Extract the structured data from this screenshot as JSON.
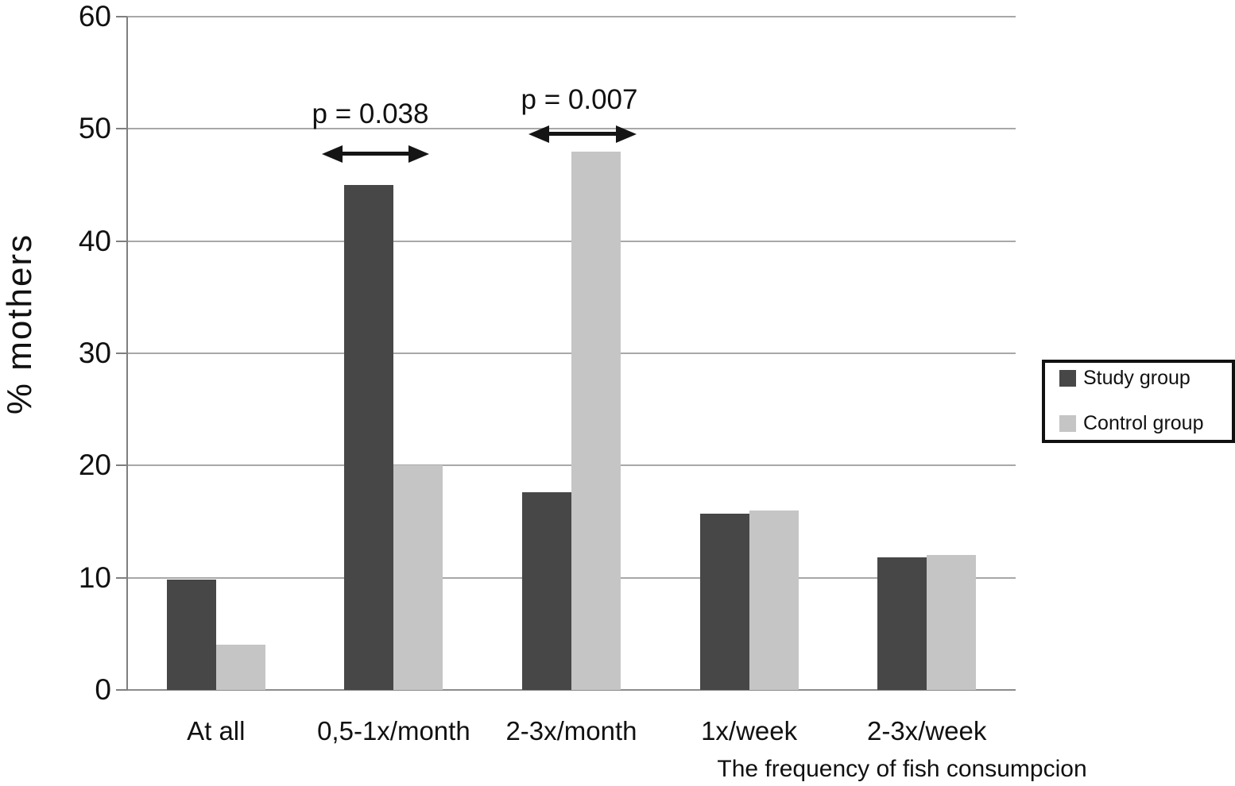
{
  "chart_data": {
    "type": "bar",
    "title": "",
    "categories": [
      "At all",
      "0,5-1x/month",
      "2-3x/month",
      "1x/week",
      "2-3x/week"
    ],
    "series": [
      {
        "name": "Study group",
        "color": "#474747",
        "values": [
          9.8,
          45,
          17.6,
          15.7,
          11.8
        ]
      },
      {
        "name": "Control group",
        "color": "#c5c5c5",
        "values": [
          4,
          20,
          48,
          16,
          12
        ]
      }
    ],
    "xlabel": "The frequency of fish consumpcion",
    "ylabel": "% mothers",
    "ylim": [
      0,
      60
    ],
    "ytick_step": 10,
    "yticks": [
      0,
      10,
      20,
      30,
      40,
      50,
      60
    ],
    "grid": "horizontal gridlines at every 10",
    "legend_position": "right",
    "annotations": [
      {
        "text": "p = 0.038",
        "style": "double-headed-arrow",
        "target_category": "0,5-1x/month"
      },
      {
        "text": "p = 0.007",
        "style": "double-headed-arrow",
        "target_category": "2-3x/month"
      }
    ]
  }
}
